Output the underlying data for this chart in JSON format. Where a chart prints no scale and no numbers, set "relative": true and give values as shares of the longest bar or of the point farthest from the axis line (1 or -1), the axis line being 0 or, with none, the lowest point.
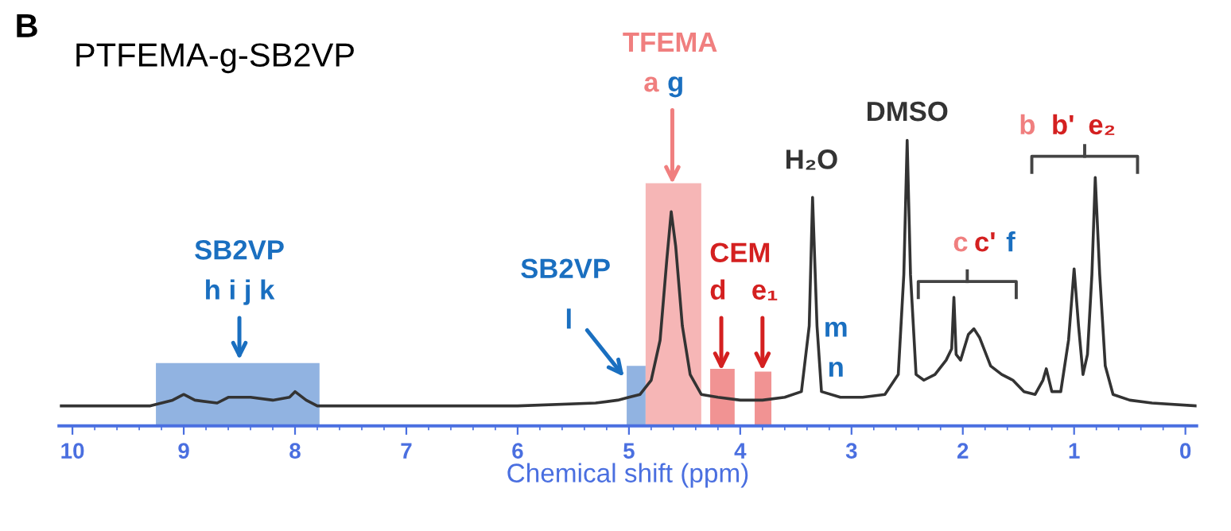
{
  "chart_data": {
    "type": "line",
    "title": "PTFEMA-g-SB2VP",
    "xlabel": "Chemical shift (ppm)",
    "relative": true,
    "tick_labels": "x",
    "grid": false,
    "xlim": [
      10.12,
      -0.1
    ],
    "xticks": [
      10,
      9,
      8,
      7,
      6,
      5,
      4,
      3,
      2,
      1,
      0
    ],
    "series": [
      {
        "color": "#333333",
        "x": [
          10.1,
          9.3,
          9.1,
          9.0,
          8.9,
          8.7,
          8.6,
          8.5,
          8.4,
          8.2,
          8.05,
          8.0,
          7.9,
          7.8,
          7.0,
          6.0,
          5.3,
          5.1,
          5.0,
          4.9,
          4.8,
          4.72,
          4.66,
          4.62,
          4.58,
          4.52,
          4.45,
          4.35,
          4.2,
          4.0,
          3.8,
          3.6,
          3.45,
          3.38,
          3.35,
          3.31,
          3.27,
          3.1,
          2.9,
          2.7,
          2.58,
          2.53,
          2.5,
          2.47,
          2.42,
          2.35,
          2.25,
          2.15,
          2.1,
          2.08,
          2.06,
          2.02,
          1.95,
          1.9,
          1.85,
          1.75,
          1.65,
          1.55,
          1.45,
          1.35,
          1.28,
          1.25,
          1.2,
          1.12,
          1.05,
          1.0,
          0.96,
          0.92,
          0.88,
          0.84,
          0.81,
          0.77,
          0.72,
          0.65,
          0.5,
          0.3,
          -0.1
        ],
        "values": [
          0.07,
          0.07,
          0.09,
          0.11,
          0.09,
          0.08,
          0.1,
          0.1,
          0.1,
          0.09,
          0.1,
          0.12,
          0.09,
          0.07,
          0.07,
          0.07,
          0.08,
          0.09,
          0.1,
          0.11,
          0.16,
          0.3,
          0.58,
          0.75,
          0.63,
          0.35,
          0.18,
          0.11,
          0.1,
          0.09,
          0.09,
          0.1,
          0.12,
          0.35,
          0.8,
          0.35,
          0.12,
          0.1,
          0.1,
          0.11,
          0.18,
          0.53,
          1.0,
          0.53,
          0.18,
          0.16,
          0.18,
          0.23,
          0.27,
          0.45,
          0.25,
          0.23,
          0.32,
          0.34,
          0.31,
          0.21,
          0.18,
          0.16,
          0.12,
          0.11,
          0.16,
          0.2,
          0.12,
          0.12,
          0.3,
          0.55,
          0.35,
          0.18,
          0.25,
          0.53,
          0.87,
          0.53,
          0.21,
          0.11,
          0.09,
          0.08,
          0.07
        ]
      }
    ],
    "bands": [
      {
        "axis": "x",
        "from": 9.25,
        "to": 7.78,
        "color": "#7ea6dc"
      },
      {
        "axis": "x",
        "from": 5.02,
        "to": 4.85,
        "color": "#7ea6dc"
      },
      {
        "axis": "x",
        "from": 4.85,
        "to": 4.35,
        "color": "#f4a9a9"
      },
      {
        "axis": "x",
        "from": 4.27,
        "to": 4.05,
        "color": "#ee8080"
      },
      {
        "axis": "x",
        "from": 3.87,
        "to": 3.72,
        "color": "#ee8080"
      }
    ],
    "annotations": [
      "B",
      "SB2VP",
      "h i j k",
      "SB2VP",
      "l",
      "TFEMA",
      "a",
      "g",
      "CEM",
      "d",
      "e₁",
      "H₂O",
      "m",
      "n",
      "DMSO",
      "c",
      "c'",
      "f",
      "b",
      "b'",
      "e₂"
    ]
  }
}
